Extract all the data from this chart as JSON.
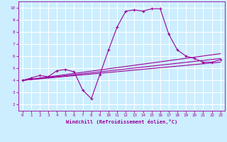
{
  "xlabel": "Windchill (Refroidissement éolien,°C)",
  "ylabel": "",
  "background_color": "#cceeff",
  "line_color": "#990099",
  "grid_color": "#ffffff",
  "x_ticks": [
    0,
    1,
    2,
    3,
    4,
    5,
    6,
    7,
    8,
    9,
    10,
    11,
    12,
    13,
    14,
    15,
    16,
    17,
    18,
    19,
    20,
    21,
    22,
    23
  ],
  "y_ticks": [
    2,
    3,
    4,
    5,
    6,
    7,
    8,
    9,
    10
  ],
  "xlim": [
    -0.5,
    23.5
  ],
  "ylim": [
    1.5,
    10.5
  ],
  "series": [
    {
      "x": [
        0,
        1,
        2,
        3,
        4,
        5,
        6,
        7,
        8,
        9,
        10,
        11,
        12,
        13,
        14,
        15,
        16,
        17,
        18,
        19,
        20,
        21,
        22,
        23
      ],
      "y": [
        4.0,
        4.2,
        4.4,
        4.3,
        4.8,
        4.9,
        4.7,
        3.2,
        2.5,
        4.5,
        6.5,
        8.4,
        9.7,
        9.8,
        9.7,
        9.9,
        9.9,
        7.8,
        6.5,
        6.0,
        5.8,
        5.5,
        5.5,
        5.7
      ],
      "marker": true
    },
    {
      "x": [
        0,
        23
      ],
      "y": [
        4.0,
        6.2
      ],
      "marker": false
    },
    {
      "x": [
        0,
        23
      ],
      "y": [
        4.0,
        5.8
      ],
      "marker": false
    },
    {
      "x": [
        0,
        23
      ],
      "y": [
        4.0,
        5.5
      ],
      "marker": false
    }
  ]
}
